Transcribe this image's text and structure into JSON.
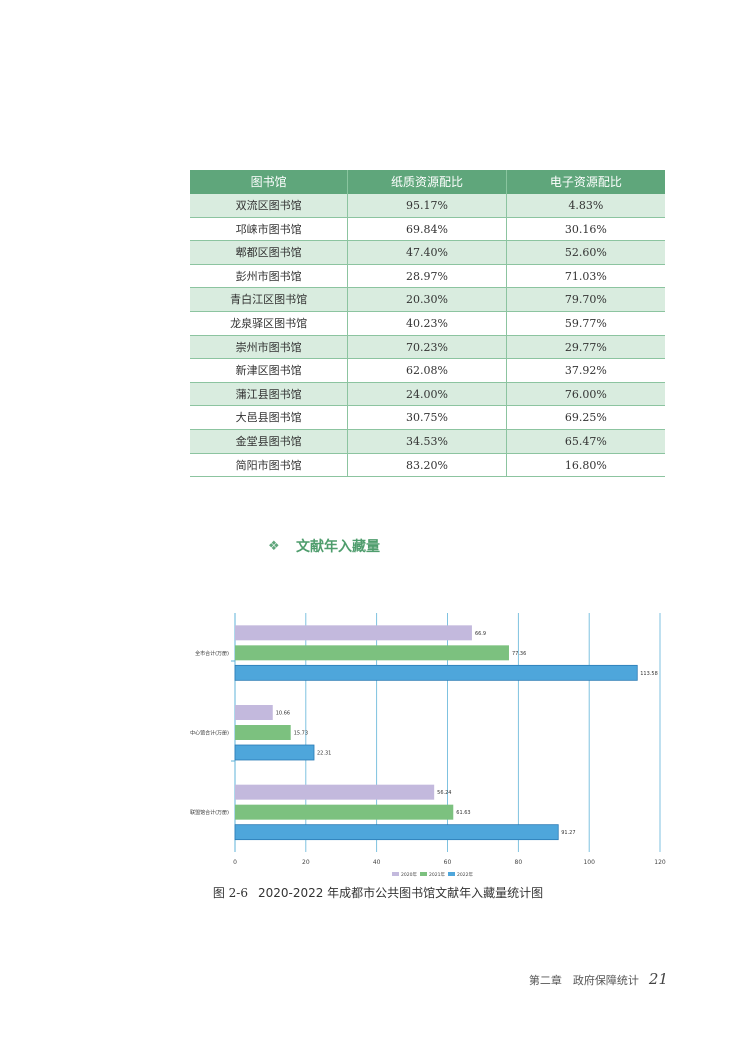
{
  "table": {
    "headers": [
      "图书馆",
      "纸质资源配比",
      "电子资源配比"
    ],
    "rows": [
      [
        "双流区图书馆",
        "95.17%",
        "4.83%"
      ],
      [
        "邛崃市图书馆",
        "69.84%",
        "30.16%"
      ],
      [
        "郫都区图书馆",
        "47.40%",
        "52.60%"
      ],
      [
        "彭州市图书馆",
        "28.97%",
        "71.03%"
      ],
      [
        "青白江区图书馆",
        "20.30%",
        "79.70%"
      ],
      [
        "龙泉驿区图书馆",
        "40.23%",
        "59.77%"
      ],
      [
        "崇州市图书馆",
        "70.23%",
        "29.77%"
      ],
      [
        "新津区图书馆",
        "62.08%",
        "37.92%"
      ],
      [
        "蒲江县图书馆",
        "24.00%",
        "76.00%"
      ],
      [
        "大邑县图书馆",
        "30.75%",
        "69.25%"
      ],
      [
        "金堂县图书馆",
        "34.53%",
        "65.47%"
      ],
      [
        "简阳市图书馆",
        "83.20%",
        "16.80%"
      ]
    ]
  },
  "section": {
    "bullet": "❖",
    "title": "文献年入藏量"
  },
  "chart_data": {
    "type": "bar",
    "orientation": "horizontal",
    "categories": [
      "全市合计(万册)",
      "中心馆合计(万册)",
      "联盟馆合计(万册)"
    ],
    "series": [
      {
        "name": "2020年",
        "color": "#c3b9dd",
        "values": [
          66.9,
          10.66,
          56.24
        ]
      },
      {
        "name": "2021年",
        "color": "#7cc17f",
        "values": [
          77.36,
          15.73,
          61.63
        ]
      },
      {
        "name": "2022年",
        "color": "#4ea6db",
        "values": [
          113.58,
          22.31,
          91.27
        ]
      }
    ],
    "xlim": [
      0,
      120
    ],
    "xticks": [
      0,
      20,
      40,
      60,
      80,
      100,
      120
    ],
    "grid": true,
    "legend": "bottom"
  },
  "caption": {
    "number": "图 2-6",
    "text": "2020-2022 年成都市公共图书馆文献年入藏量统计图"
  },
  "footer": {
    "chapter": "第二章　政府保障统计",
    "page": "21"
  }
}
